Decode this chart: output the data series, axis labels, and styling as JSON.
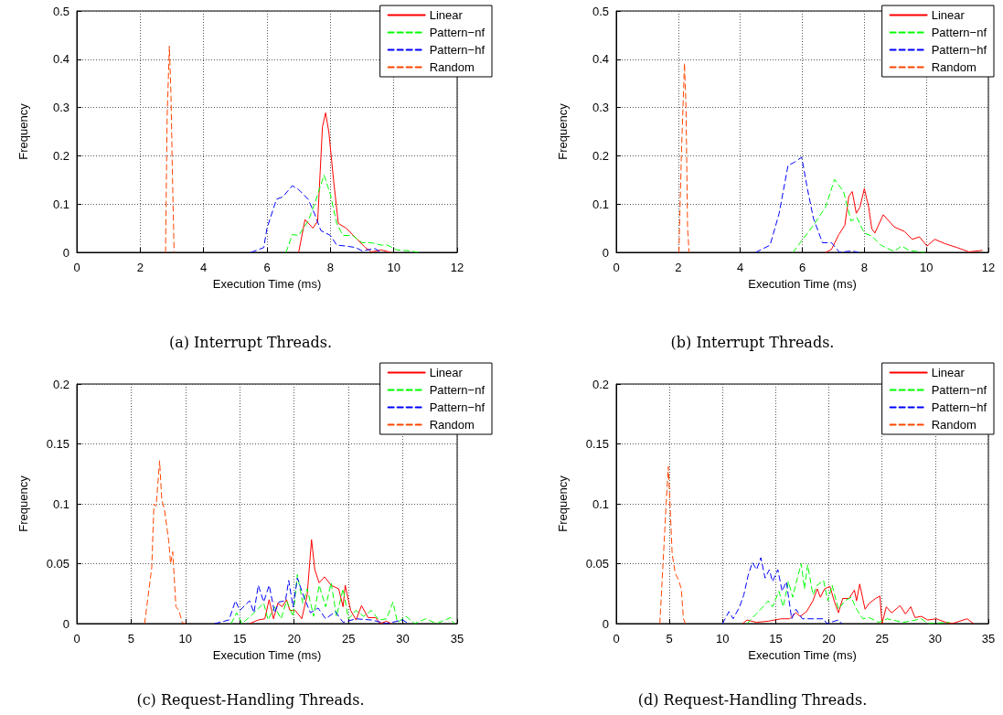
{
  "chart_data": [
    {
      "type": "line",
      "subtitle": "(a) Interrupt Threads.",
      "xlabel": "Execution Time (ms)",
      "ylabel": "Frequency",
      "xlim": [
        0,
        12
      ],
      "xticks": [
        0,
        2,
        4,
        6,
        8,
        10,
        12
      ],
      "ylim": [
        0,
        0.5
      ],
      "yticks": [
        0,
        0.1,
        0.2,
        0.3,
        0.4,
        0.5
      ],
      "grid": true,
      "legend": "top right",
      "marker": "none",
      "series": [
        {
          "name": "Linear",
          "color": "#ff0000",
          "line_style": "solid",
          "x": [
            7.0,
            7.2,
            7.45,
            7.6,
            7.75,
            7.85,
            7.95,
            8.1,
            8.25,
            8.5,
            8.8,
            9.1,
            9.3,
            9.6,
            9.9
          ],
          "values": [
            0,
            0.068,
            0.05,
            0.065,
            0.26,
            0.289,
            0.25,
            0.15,
            0.06,
            0.05,
            0.03,
            0.01,
            0.001,
            0.005,
            0
          ]
        },
        {
          "name": "Pattern−nf",
          "color": "#00ff00",
          "line_style": "dashed",
          "x": [
            6.6,
            6.8,
            7.0,
            7.3,
            7.5,
            7.7,
            7.8,
            8.0,
            8.2,
            8.4,
            8.7,
            9.0,
            9.3,
            9.6,
            9.8,
            10.1,
            10.5,
            10.8
          ],
          "values": [
            0,
            0.037,
            0.035,
            0.065,
            0.1,
            0.14,
            0.16,
            0.12,
            0.06,
            0.035,
            0.035,
            0.02,
            0.02,
            0.015,
            0.015,
            0.005,
            0.003,
            0
          ]
        },
        {
          "name": "Pattern−hf",
          "color": "#0000ff",
          "line_style": "dashed",
          "x": [
            5.5,
            5.9,
            6.0,
            6.3,
            6.5,
            6.8,
            7.0,
            7.3,
            7.5,
            7.7,
            8.0,
            8.2,
            8.5,
            8.8,
            9.0,
            9.4,
            9.6
          ],
          "values": [
            0,
            0.01,
            0.05,
            0.11,
            0.115,
            0.138,
            0.13,
            0.11,
            0.08,
            0.045,
            0.035,
            0.015,
            0.013,
            0.01,
            0.003,
            0.008,
            0
          ]
        },
        {
          "name": "Random",
          "color": "#ff4500",
          "line_style": "dashed",
          "x": [
            2.8,
            2.85,
            2.92,
            2.97,
            3.02,
            3.07
          ],
          "values": [
            0,
            0.28,
            0.427,
            0.33,
            0.15,
            0
          ]
        }
      ]
    },
    {
      "type": "line",
      "subtitle": "(b) Interrupt Threads.",
      "xlabel": "Execution Time (ms)",
      "ylabel": "Frequency",
      "xlim": [
        0,
        12
      ],
      "xticks": [
        0,
        2,
        4,
        6,
        8,
        10,
        12
      ],
      "ylim": [
        0,
        0.5
      ],
      "yticks": [
        0,
        0.1,
        0.2,
        0.3,
        0.4,
        0.5
      ],
      "grid": true,
      "legend": "top right",
      "marker": "none",
      "series": [
        {
          "name": "Linear",
          "color": "#ff0000",
          "line_style": "solid",
          "x": [
            6.75,
            6.94,
            7.18,
            7.37,
            7.5,
            7.61,
            7.74,
            7.86,
            8.0,
            8.14,
            8.24,
            8.34,
            8.61,
            8.96,
            9.3,
            9.54,
            9.78,
            10.02,
            10.27,
            10.6,
            10.99,
            11.37,
            11.8
          ],
          "values": [
            0,
            0.006,
            0.037,
            0.056,
            0.116,
            0.126,
            0.081,
            0.094,
            0.132,
            0.094,
            0.049,
            0.04,
            0.078,
            0.053,
            0.043,
            0.027,
            0.032,
            0.013,
            0.027,
            0.018,
            0.01,
            0.001,
            0.004
          ]
        },
        {
          "name": "Pattern−nf",
          "color": "#00ff00",
          "line_style": "dashed",
          "x": [
            5.7,
            5.98,
            6.36,
            6.75,
            7.04,
            7.33,
            7.57,
            7.76,
            8.0,
            8.24,
            8.53,
            8.82,
            8.96,
            9.2,
            9.45,
            9.93
          ],
          "values": [
            0,
            0.024,
            0.056,
            0.094,
            0.151,
            0.126,
            0.065,
            0.072,
            0.04,
            0.034,
            0.015,
            0.006,
            0.002,
            0.013,
            0.004,
            0
          ]
        },
        {
          "name": "Pattern−hf",
          "color": "#0000ff",
          "line_style": "dashed",
          "x": [
            4.5,
            4.96,
            5.25,
            5.54,
            5.73,
            5.98,
            6.17,
            6.36,
            6.65,
            6.94,
            7.2,
            7.6,
            7.8
          ],
          "values": [
            0,
            0.015,
            0.08,
            0.18,
            0.186,
            0.197,
            0.13,
            0.07,
            0.02,
            0.02,
            0,
            0.003,
            0
          ]
        },
        {
          "name": "Random",
          "color": "#ff4500",
          "line_style": "dashed",
          "x": [
            2.02,
            2.1,
            2.2,
            2.25,
            2.3,
            2.35
          ],
          "values": [
            0,
            0.2,
            0.392,
            0.3,
            0.05,
            0
          ]
        }
      ]
    },
    {
      "type": "line",
      "subtitle": "(c) Request-Handling Threads.",
      "xlabel": "Execution Time (ms)",
      "ylabel": "Frequency",
      "xlim": [
        0,
        35
      ],
      "xticks": [
        0,
        5,
        10,
        15,
        20,
        25,
        30,
        35
      ],
      "ylim": [
        0,
        0.2
      ],
      "yticks": [
        0,
        0.05,
        0.1,
        0.15,
        0.2
      ],
      "grid": true,
      "legend": "top right",
      "marker": "none",
      "series": [
        {
          "name": "Linear",
          "color": "#ff0000",
          "line_style": "solid",
          "x": [
            15.9,
            16.7,
            17.3,
            17.7,
            18.1,
            18.5,
            18.9,
            19.3,
            19.6,
            20.1,
            20.7,
            21.2,
            21.6,
            21.9,
            22.3,
            22.8,
            23.4,
            24.1,
            24.5,
            24.7,
            25.2,
            25.7,
            26.2,
            26.8,
            27.5,
            27.9,
            28.5,
            28.9
          ],
          "values": [
            0,
            0.003,
            0.004,
            0.02,
            0.004,
            0.017,
            0.014,
            0.02,
            0.011,
            0.011,
            0.004,
            0.024,
            0.07,
            0.045,
            0.034,
            0.039,
            0.032,
            0.029,
            0.014,
            0.032,
            0.011,
            0.003,
            0.015,
            0.005,
            0.005,
            0,
            0.002,
            0
          ]
        },
        {
          "name": "Pattern−nf",
          "color": "#00ff00",
          "line_style": "dashed",
          "x": [
            14.2,
            14.7,
            15.2,
            16.2,
            17.2,
            17.6,
            18.2,
            18.8,
            19.3,
            19.9,
            20.3,
            20.8,
            21.2,
            21.8,
            22.3,
            22.9,
            23.4,
            23.9,
            24.5,
            25.0,
            25.7,
            26.4,
            27.1,
            27.8,
            28.5,
            29.1,
            29.5,
            30.3,
            31.1,
            32.1,
            33.1,
            34.4,
            34.7
          ],
          "values": [
            0,
            0.009,
            0,
            0.008,
            0.017,
            0.003,
            0.014,
            0.004,
            0.019,
            0.006,
            0.041,
            0.017,
            0.029,
            0.006,
            0.032,
            0.014,
            0.034,
            0.006,
            0.029,
            0.004,
            0.011,
            0.006,
            0.011,
            0.003,
            0.004,
            0.018,
            0.001,
            0.006,
            0,
            0.004,
            0,
            0.005,
            0
          ]
        },
        {
          "name": "Pattern−hf",
          "color": "#0000ff",
          "line_style": "dashed",
          "x": [
            12.7,
            14.0,
            14.6,
            15.0,
            15.9,
            16.3,
            16.7,
            17.2,
            17.7,
            18.2,
            18.6,
            19.2,
            19.5,
            19.9,
            20.3,
            20.9,
            21.5,
            22.2,
            22.9,
            23.8,
            24.5,
            25.7,
            27.1,
            28.5,
            30.0,
            30.5
          ],
          "values": [
            0,
            0.003,
            0.019,
            0.011,
            0.019,
            0.009,
            0.032,
            0.018,
            0.032,
            0.009,
            0.018,
            0.019,
            0.036,
            0.014,
            0.038,
            0.022,
            0.009,
            0.013,
            0.004,
            0.01,
            0.001,
            0.004,
            0.003,
            0,
            0.003,
            0
          ]
        },
        {
          "name": "Random",
          "color": "#ff4500",
          "line_style": "dashed",
          "x": [
            6.24,
            6.9,
            7.1,
            7.3,
            7.62,
            7.82,
            8.05,
            8.46,
            8.63,
            8.83,
            9.12,
            9.4,
            9.69,
            10.0
          ],
          "values": [
            0,
            0.047,
            0.1,
            0.098,
            0.136,
            0.103,
            0.096,
            0.069,
            0.05,
            0.06,
            0.014,
            0.011,
            0.001,
            0
          ]
        }
      ]
    },
    {
      "type": "line",
      "subtitle": "(d) Request-Handling Threads.",
      "xlabel": "Execution Time (ms)",
      "ylabel": "Frequency",
      "xlim": [
        0,
        35
      ],
      "xticks": [
        0,
        5,
        10,
        15,
        20,
        25,
        30,
        35
      ],
      "ylim": [
        0,
        0.2
      ],
      "yticks": [
        0,
        0.05,
        0.1,
        0.15,
        0.2
      ],
      "grid": true,
      "legend": "top right",
      "marker": "none",
      "series": [
        {
          "name": "Linear",
          "color": "#ff0000",
          "line_style": "solid",
          "x": [
            11.9,
            12.3,
            13.2,
            14.3,
            15.5,
            16.3,
            16.9,
            17.3,
            17.9,
            18.5,
            18.9,
            19.2,
            19.6,
            20.1,
            20.5,
            20.9,
            21.3,
            21.9,
            22.4,
            22.6,
            22.9,
            23.4,
            23.8,
            24.4,
            24.8,
            25.0,
            25.4,
            25.9,
            26.7,
            27.2,
            27.7,
            28.1,
            28.7,
            29.3,
            30.1,
            31.0,
            31.6,
            33.0,
            33.6
          ],
          "values": [
            0,
            0.003,
            0.001,
            0.002,
            0.004,
            0.004,
            0.009,
            0.006,
            0.01,
            0.019,
            0.029,
            0.022,
            0.029,
            0.031,
            0.019,
            0.009,
            0.021,
            0.021,
            0.028,
            0.019,
            0.033,
            0.012,
            0.017,
            0.021,
            0.023,
            0,
            0.014,
            0.009,
            0.015,
            0.008,
            0.014,
            0.005,
            0.006,
            0.003,
            0.004,
            0.001,
            0,
            0.004,
            0
          ]
        },
        {
          "name": "Pattern−nf",
          "color": "#00ff00",
          "line_style": "dashed",
          "x": [
            12.3,
            13.7,
            14.3,
            14.7,
            15.3,
            15.7,
            16.2,
            16.6,
            17.0,
            17.4,
            17.7,
            18.0,
            18.5,
            18.9,
            19.5,
            19.9,
            20.3,
            20.9,
            21.5,
            22.1,
            22.6,
            23.2,
            23.8,
            24.7,
            25.5,
            27.0,
            28.7,
            29.3,
            31.3
          ],
          "values": [
            0,
            0.013,
            0.019,
            0.014,
            0.027,
            0.014,
            0.035,
            0.022,
            0.037,
            0.05,
            0.029,
            0.049,
            0.024,
            0.032,
            0.036,
            0.019,
            0.032,
            0.012,
            0.019,
            0.022,
            0.012,
            0.004,
            0.005,
            0.001,
            0.004,
            0.001,
            0.004,
            0,
            0.001
          ]
        },
        {
          "name": "Pattern−hf",
          "color": "#0000ff",
          "line_style": "dashed",
          "x": [
            10.0,
            10.6,
            11.0,
            11.6,
            12.0,
            12.4,
            12.8,
            13.2,
            13.6,
            14.0,
            14.4,
            14.7,
            15.2,
            15.6,
            16.0,
            16.5,
            16.9,
            17.5,
            18.0,
            18.8,
            19.5,
            19.8,
            20.9,
            21.2
          ],
          "values": [
            0,
            0.01,
            0.004,
            0.014,
            0.024,
            0.04,
            0.051,
            0.045,
            0.055,
            0.038,
            0.045,
            0.035,
            0.045,
            0.027,
            0.035,
            0.004,
            0.012,
            0.004,
            0.004,
            0.004,
            0.004,
            0,
            0.003,
            0
          ]
        },
        {
          "name": "Random",
          "color": "#ff4500",
          "line_style": "dashed",
          "x": [
            4.1,
            4.4,
            4.7,
            4.9,
            5.06,
            5.26,
            5.55,
            5.83,
            6.12,
            6.32,
            6.5
          ],
          "values": [
            0,
            0.05,
            0.101,
            0.131,
            0.099,
            0.058,
            0.042,
            0.037,
            0.029,
            0.004,
            0
          ]
        }
      ]
    }
  ]
}
